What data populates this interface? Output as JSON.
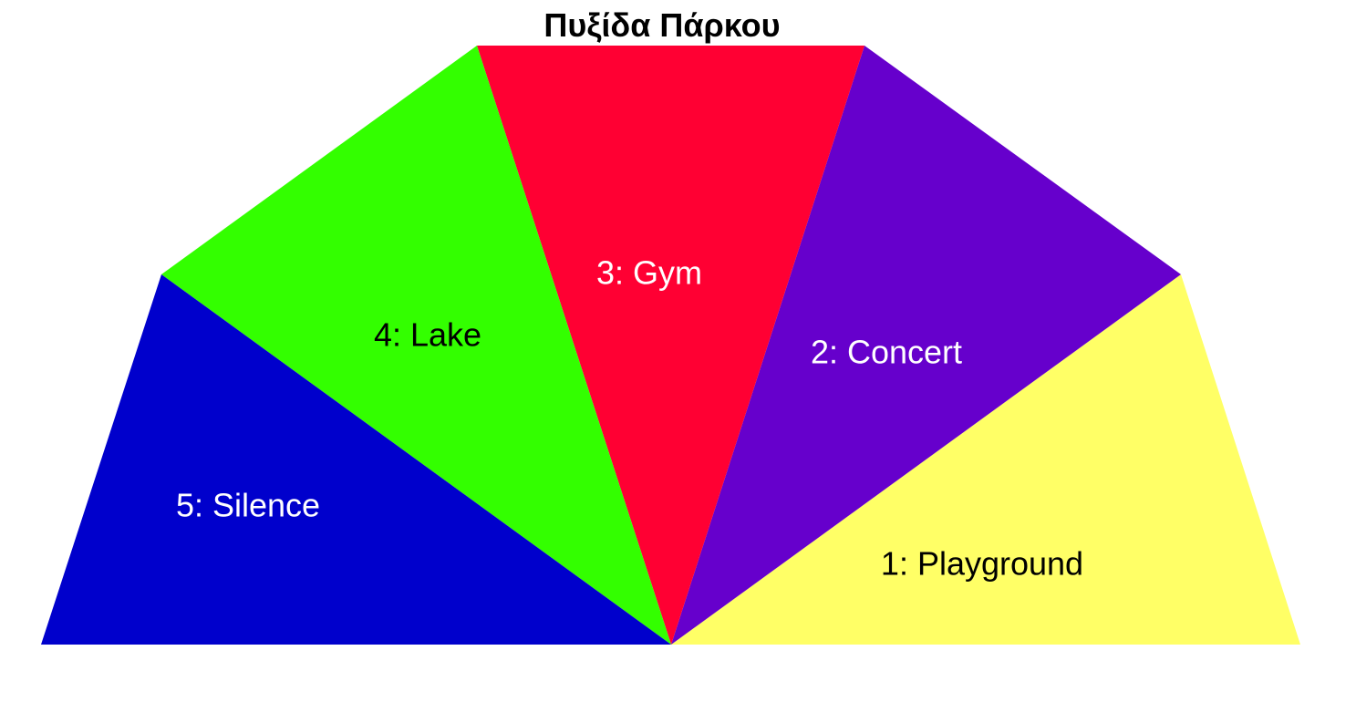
{
  "title": "Πυξίδα Πάρκου",
  "sectors": [
    {
      "number": "1",
      "name": "Playground",
      "label": "1: Playground",
      "color": "#FFFF66",
      "text_color": "#000000"
    },
    {
      "number": "2",
      "name": "Concert",
      "label": "2: Concert",
      "color": "#6600CC",
      "text_color": "#FFFFFF"
    },
    {
      "number": "3",
      "name": "Gym",
      "label": "3: Gym",
      "color": "#FF0033",
      "text_color": "#FFFFFF"
    },
    {
      "number": "4",
      "name": "Lake",
      "label": "4: Lake",
      "color": "#33FF00",
      "text_color": "#000000"
    },
    {
      "number": "5",
      "name": "Silence",
      "label": "5: Silence",
      "color": "#0000CC",
      "text_color": "#FFFFFF"
    }
  ]
}
